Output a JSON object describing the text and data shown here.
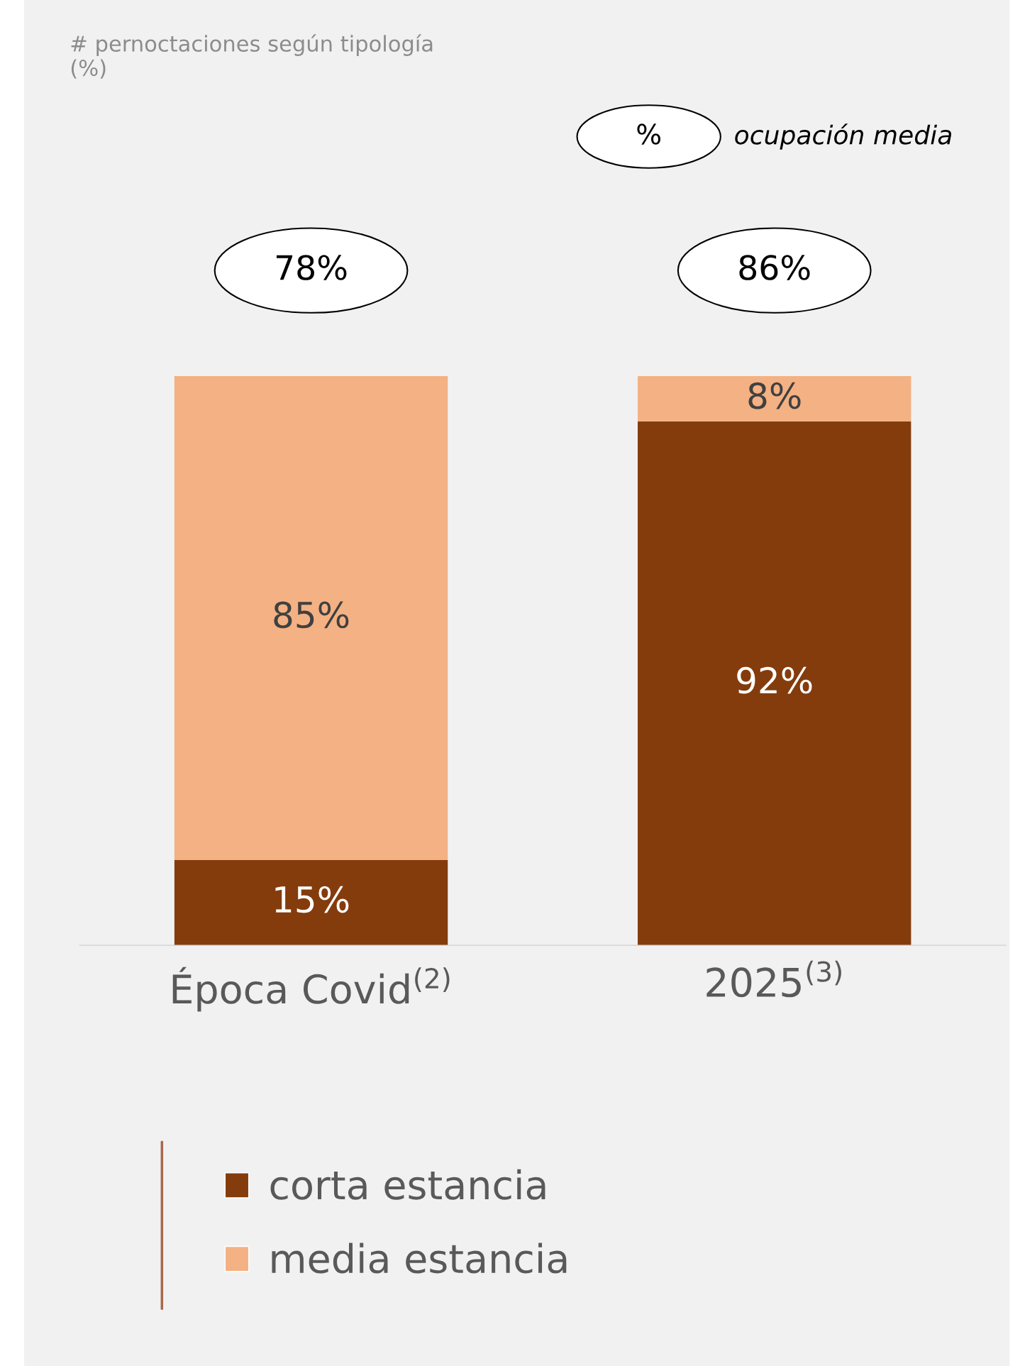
{
  "chart_data": {
    "type": "bar",
    "title": "# pernoctaciones según tipología\n(%)",
    "categories": [
      "Época Covid$^{(2)}$",
      "2025$^{(3)}$"
    ],
    "series": [
      {
        "name": "corta estancia",
        "color": "#843c0c",
        "values": [
          15,
          92
        ],
        "value_labels": [
          "15%",
          "92%"
        ]
      },
      {
        "name": "media estancia",
        "color": "#f4b183",
        "values": [
          85,
          8
        ],
        "value_labels": [
          "85%",
          "8%"
        ]
      }
    ],
    "stacked": true,
    "legend": "bottom",
    "grid": false,
    "annotations": [
      "78%",
      "86%",
      "%",
      "ocupación media"
    ]
  }
}
